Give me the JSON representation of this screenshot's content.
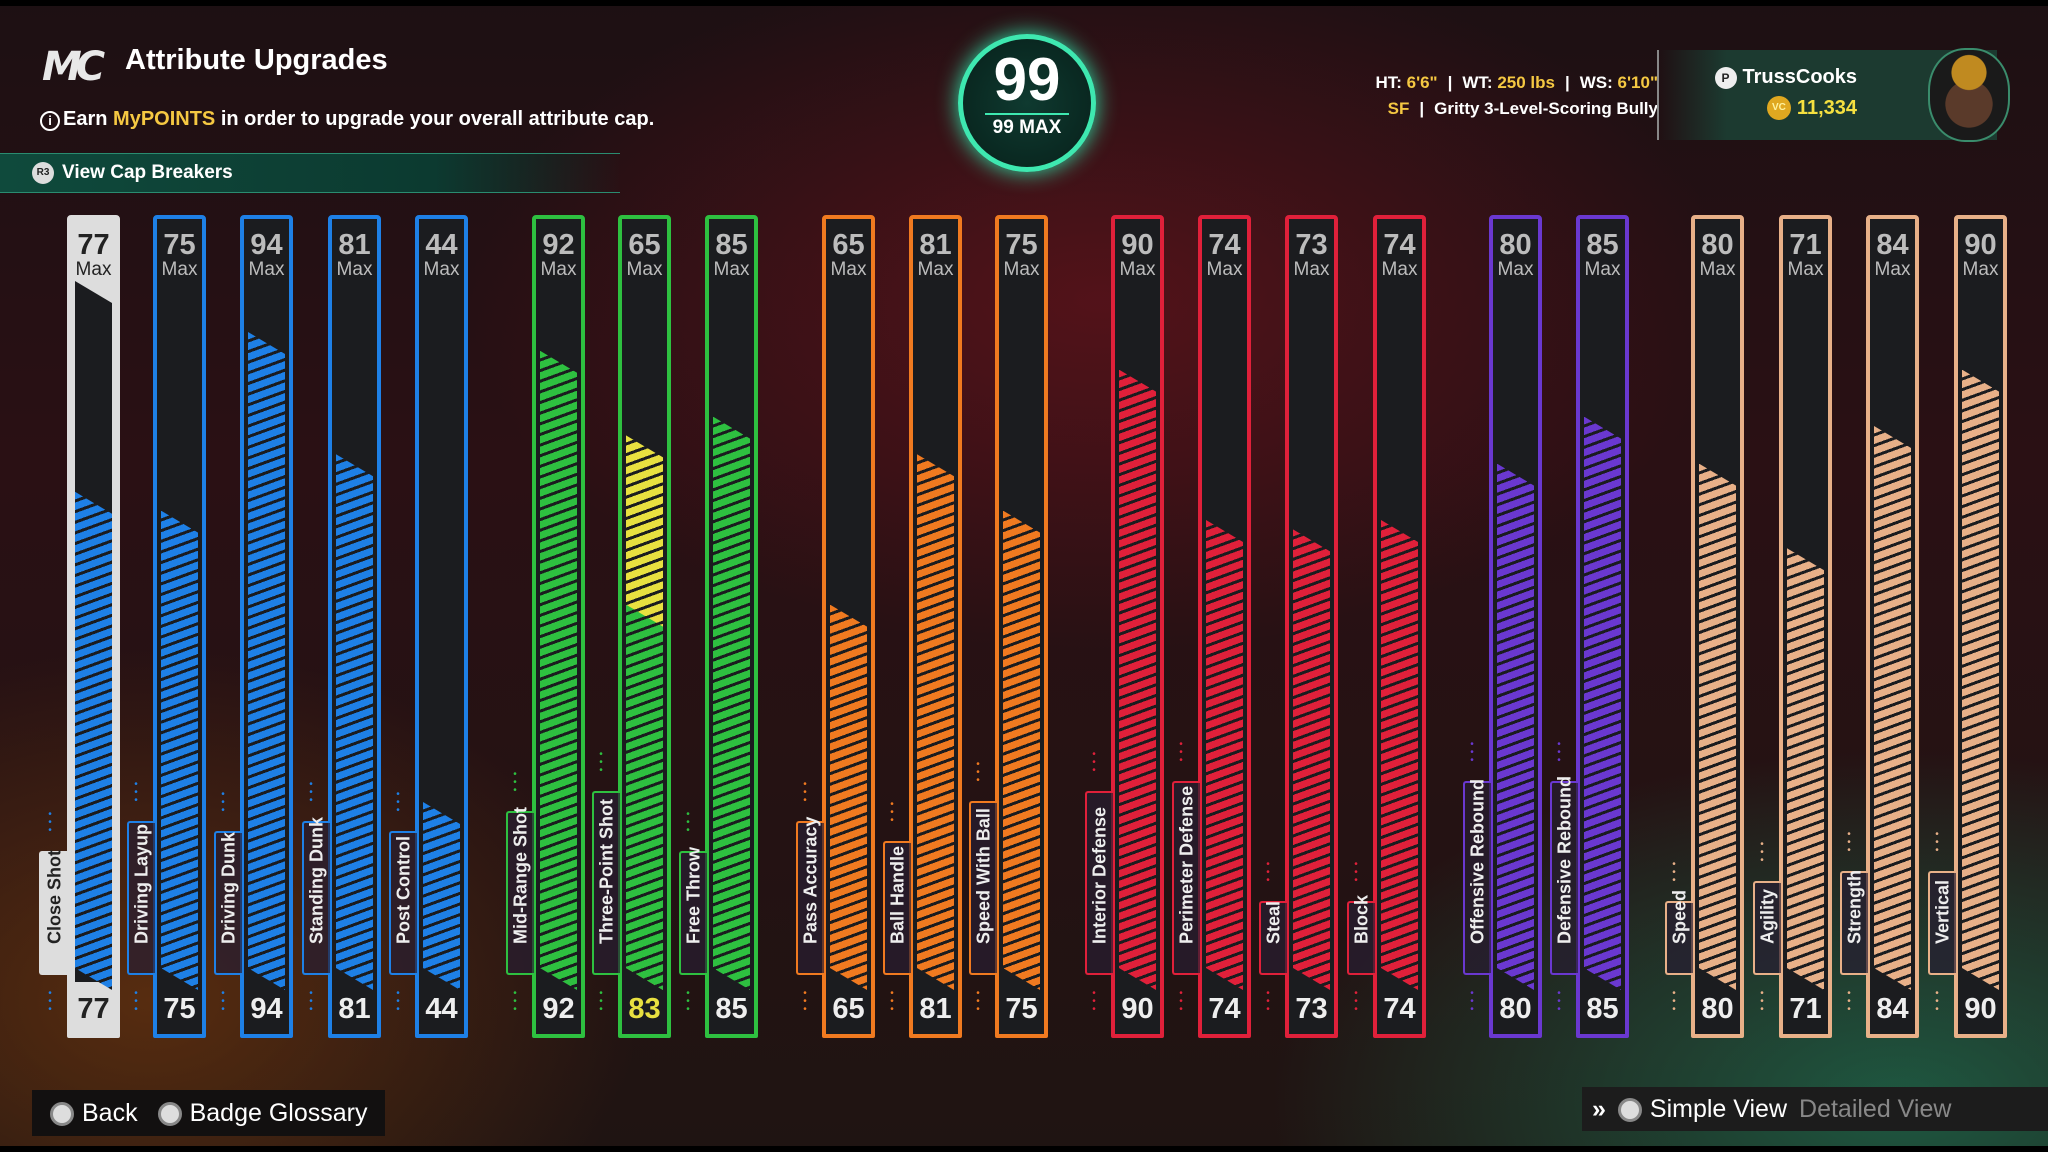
{
  "header": {
    "logo": "MC",
    "title": "Attribute Upgrades",
    "earn_prefix": "Earn ",
    "earn_highlight": "MyPOINTS",
    "earn_suffix": " in order to upgrade your overall attribute cap.",
    "cap_breakers": "View Cap Breakers",
    "cap_button": "R3"
  },
  "overall": {
    "value": "99",
    "max": "99 MAX",
    "accent": "#3ee8b0"
  },
  "bio": {
    "ht_label": "HT: ",
    "ht": "6'6\"",
    "wt_label": "WT: ",
    "wt": "250 lbs",
    "ws_label": "WS: ",
    "ws": "6'10\"",
    "position": "SF",
    "archetype": "Gritty 3-Level-Scoring Bully",
    "sep": "|"
  },
  "profile": {
    "username": "TrussCooks",
    "vc": "11,334",
    "vc_icon": "VC"
  },
  "max_label": "Max",
  "attributes": [
    {
      "name": "Close Shot",
      "max": 77,
      "value": 77,
      "color": "#1e80e6",
      "selected": true
    },
    {
      "name": "Driving Layup",
      "max": 75,
      "value": 75,
      "color": "#1e80e6"
    },
    {
      "name": "Driving Dunk",
      "max": 94,
      "value": 94,
      "color": "#1e80e6"
    },
    {
      "name": "Standing Dunk",
      "max": 81,
      "value": 81,
      "color": "#1e80e6"
    },
    {
      "name": "Post Control",
      "max": 44,
      "value": 44,
      "color": "#1e80e6"
    },
    {
      "name": "Mid-Range Shot",
      "max": 92,
      "value": 92,
      "color": "#2ec040"
    },
    {
      "name": "Three-Point Shot",
      "max": 65,
      "value": 83,
      "current": 65,
      "color": "#2ec040",
      "preview_color": "#e8e040"
    },
    {
      "name": "Free Throw",
      "max": 85,
      "value": 85,
      "color": "#2ec040"
    },
    {
      "name": "Pass Accuracy",
      "max": 65,
      "value": 65,
      "color": "#f07a20"
    },
    {
      "name": "Ball Handle",
      "max": 81,
      "value": 81,
      "color": "#f07a20"
    },
    {
      "name": "Speed With Ball",
      "max": 75,
      "value": 75,
      "color": "#f07a20"
    },
    {
      "name": "Interior Defense",
      "max": 90,
      "value": 90,
      "color": "#e0203a"
    },
    {
      "name": "Perimeter Defense",
      "max": 74,
      "value": 74,
      "color": "#e0203a"
    },
    {
      "name": "Steal",
      "max": 73,
      "value": 73,
      "color": "#e0203a"
    },
    {
      "name": "Block",
      "max": 74,
      "value": 74,
      "color": "#e0203a"
    },
    {
      "name": "Offensive Rebound",
      "max": 80,
      "value": 80,
      "color": "#6a38d0"
    },
    {
      "name": "Defensive Rebound",
      "max": 85,
      "value": 85,
      "color": "#6a38d0"
    },
    {
      "name": "Speed",
      "max": 80,
      "value": 80,
      "color": "#e8b088"
    },
    {
      "name": "Agility",
      "max": 71,
      "value": 71,
      "color": "#e8b088"
    },
    {
      "name": "Strength",
      "max": 84,
      "value": 84,
      "color": "#e8b088"
    },
    {
      "name": "Vertical",
      "max": 90,
      "value": 90,
      "color": "#e8b088"
    }
  ],
  "footer": {
    "back": "Back",
    "glossary": "Badge Glossary",
    "simple": "Simple View",
    "detailed": "Detailed View",
    "arrows": "»"
  }
}
